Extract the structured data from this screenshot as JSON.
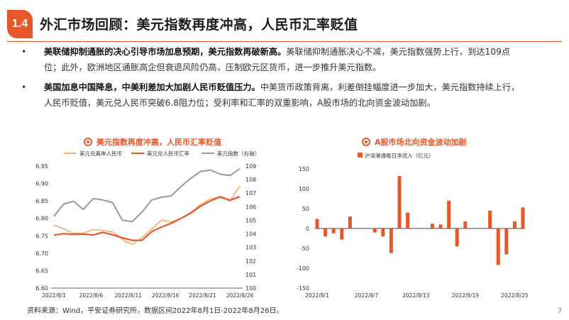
{
  "section": {
    "number": "1.4",
    "title": "外汇市场回顾：美元指数再度冲高，人民币汇率贬值"
  },
  "bullets": [
    {
      "bold": "美联储抑制通胀的决心引导市场加息预期，美元指数再破新高。",
      "text": "美联储抑制通胀决心不减，美元指数强势上行，到达109点位；此外，欧洲地区通胀高企但衰退风险仍高，压制欧元区货币，进一步推升美元指数。"
    },
    {
      "bold": "美国加息中国降息，中美利差加大加剧人民币贬值压力。",
      "text": "中美货币政策背离，利差倒挂幅度进一步加大，美元指数持续上行，人民币贬值，美元兑人民币突破6.8阻力位；受利率和汇率的双重影响，A股市场的北向资金波动加剧。"
    }
  ],
  "bullet_symbol": "•",
  "colors": {
    "accent": "#e8572a",
    "light_orange": "#f5b47a",
    "gray": "#9a9a9a"
  },
  "chart_data": [
    {
      "type": "line",
      "title": "美元指数再度冲高，人民币汇率贬值",
      "categories": [
        "2022/8/1",
        "2022/8/2",
        "2022/8/3",
        "2022/8/4",
        "2022/8/5",
        "2022/8/8",
        "2022/8/9",
        "2022/8/10",
        "2022/8/11",
        "2022/8/12",
        "2022/8/15",
        "2022/8/16",
        "2022/8/17",
        "2022/8/18",
        "2022/8/19",
        "2022/8/22",
        "2022/8/23",
        "2022/8/24",
        "2022/8/25",
        "2022/8/26"
      ],
      "x_tick_labels": [
        "2022/8/1",
        "2022/8/6",
        "2022/8/11",
        "2022/8/16",
        "2022/8/21",
        "2022/8/26"
      ],
      "y_left": {
        "min": 6.6,
        "max": 6.95,
        "ticks": [
          "6.60",
          "6.65",
          "6.70",
          "6.75",
          "6.80",
          "6.85",
          "6.90",
          "6.95"
        ]
      },
      "y_right": {
        "min": 100,
        "max": 109,
        "ticks": [
          "100",
          "101",
          "102",
          "103",
          "104",
          "105",
          "106",
          "107",
          "108",
          "109"
        ]
      },
      "series": [
        {
          "name": "美元兑离岸人民币",
          "axis": "left",
          "color": "#f5b47a",
          "values": [
            6.78,
            6.77,
            6.757,
            6.757,
            6.768,
            6.765,
            6.762,
            6.74,
            6.725,
            6.745,
            6.77,
            6.795,
            6.79,
            6.8,
            6.818,
            6.84,
            6.856,
            6.86,
            6.85,
            6.893
          ]
        },
        {
          "name": "美元兑人民币汇率",
          "axis": "left",
          "color": "#e8572a",
          "values": [
            6.752,
            6.756,
            6.754,
            6.755,
            6.752,
            6.76,
            6.753,
            6.744,
            6.737,
            6.737,
            6.762,
            6.775,
            6.786,
            6.8,
            6.815,
            6.835,
            6.85,
            6.862,
            6.852,
            6.862
          ]
        },
        {
          "name": "美元指数（右轴）",
          "axis": "right",
          "color": "#9a9a9a",
          "values": [
            105.3,
            106.2,
            106.4,
            105.8,
            106.6,
            106.5,
            106.3,
            105.0,
            104.9,
            105.6,
            106.5,
            106.7,
            106.8,
            107.5,
            108.1,
            108.6,
            108.7,
            108.4,
            108.3,
            108.8
          ]
        }
      ]
    },
    {
      "type": "bar",
      "title": "A股市场北向资金波动加剧",
      "legend": "沪深港通每日净流入（亿元）",
      "x_tick_labels": [
        "2022/8/1",
        "2022/8/7",
        "2022/8/13",
        "2022/8/19",
        "2022/8/25"
      ],
      "ylim": [
        -150,
        150
      ],
      "y_ticks": [
        "150",
        "100",
        "50",
        "0",
        "-50",
        "-100",
        "-150"
      ],
      "categories": [
        "2022/8/1",
        "2022/8/2",
        "2022/8/3",
        "2022/8/4",
        "2022/8/5",
        "2022/8/8",
        "2022/8/9",
        "2022/8/10",
        "2022/8/11",
        "2022/8/12",
        "2022/8/15",
        "2022/8/16",
        "2022/8/17",
        "2022/8/18",
        "2022/8/19",
        "2022/8/22",
        "2022/8/23",
        "2022/8/24",
        "2022/8/25",
        "2022/8/26"
      ],
      "values": [
        24,
        -20,
        -12,
        -28,
        30,
        -10,
        -20,
        -62,
        132,
        40,
        12,
        10,
        70,
        -45,
        18,
        45,
        -92,
        -65,
        18,
        53
      ],
      "color": "#e8572a"
    }
  ],
  "source": "资料来源：Wind，平安证券研究所，数据区间2022年8月1日-2022年8月26日。",
  "page_number": "7"
}
